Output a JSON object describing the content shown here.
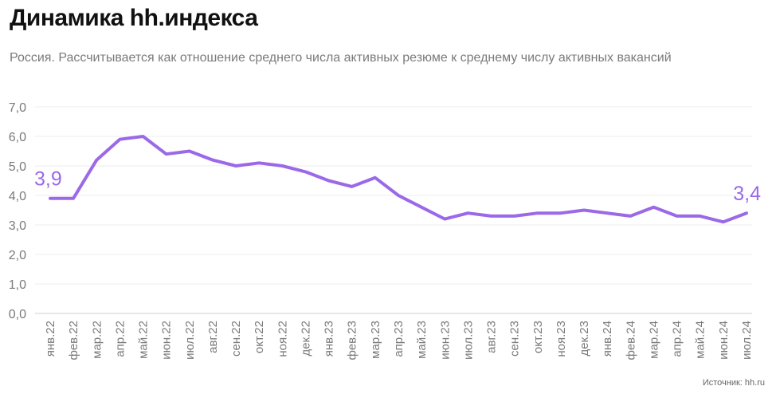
{
  "title": "Динамика hh.индекса",
  "subtitle": "Россия. Рассчитывается как отношение среднего числа активных резюме к среднему числу активных вакансий",
  "source": "Источник: hh.ru",
  "colors": {
    "line": "#9b69e8",
    "grid": "#eeeeee",
    "axis": "#cfcfcf",
    "tick_text": "#7a7a7a",
    "callout": "#9b69e8"
  },
  "chart_data": {
    "type": "line",
    "categories": [
      "янв.22",
      "фев.22",
      "мар.22",
      "апр.22",
      "май.22",
      "июн.22",
      "июл.22",
      "авг.22",
      "сен.22",
      "окт.22",
      "ноя.22",
      "дек.22",
      "янв.23",
      "фев.23",
      "мар.23",
      "апр.23",
      "май.23",
      "июн.23",
      "июл.23",
      "авг.23",
      "сен.23",
      "окт.23",
      "ноя.23",
      "дек.23",
      "янв.24",
      "фев.24",
      "мар.24",
      "апр.24",
      "май.24",
      "июн.24",
      "июл.24"
    ],
    "series": [
      {
        "values": [
          3.9,
          3.9,
          5.2,
          5.9,
          6.0,
          5.4,
          5.5,
          5.2,
          5.0,
          5.1,
          5.0,
          4.8,
          4.5,
          4.3,
          4.6,
          4.0,
          3.6,
          3.2,
          3.4,
          3.3,
          3.3,
          3.4,
          3.4,
          3.5,
          3.4,
          3.3,
          3.6,
          3.3,
          3.3,
          3.1,
          3.4
        ]
      }
    ],
    "y_ticks": [
      "0,0",
      "1,0",
      "2,0",
      "3,0",
      "4,0",
      "5,0",
      "6,0",
      "7,0"
    ],
    "ylim": [
      0,
      7
    ],
    "grid": true,
    "annotations": [
      {
        "index": 0,
        "text": "3,9"
      },
      {
        "index": 30,
        "text": "3,4"
      }
    ]
  }
}
